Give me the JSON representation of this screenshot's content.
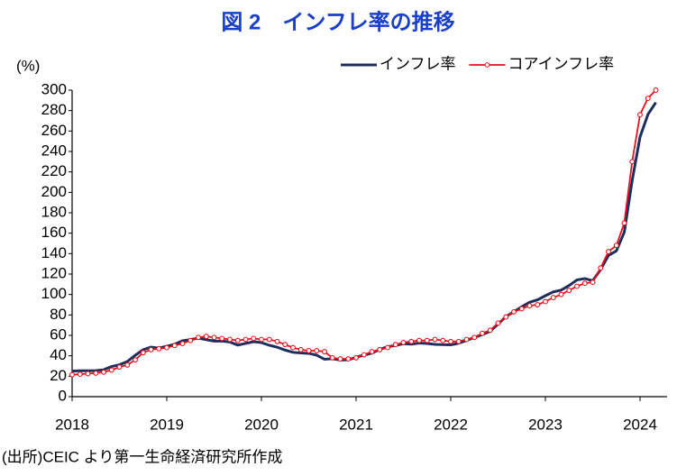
{
  "chart_data": {
    "type": "line",
    "title": "図 2　インフレ率の推移",
    "y_label": "(%)",
    "source": "(出所)CEIC より第一生命経済研究所作成",
    "categories": [
      "2018",
      null,
      null,
      null,
      null,
      null,
      null,
      null,
      null,
      null,
      null,
      null,
      "2019",
      null,
      null,
      null,
      null,
      null,
      null,
      null,
      null,
      null,
      null,
      null,
      "2020",
      null,
      null,
      null,
      null,
      null,
      null,
      null,
      null,
      null,
      null,
      null,
      "2021",
      null,
      null,
      null,
      null,
      null,
      null,
      null,
      null,
      null,
      null,
      null,
      "2022",
      null,
      null,
      null,
      null,
      null,
      null,
      null,
      null,
      null,
      null,
      null,
      "2023",
      null,
      null,
      null,
      null,
      null,
      null,
      null,
      null,
      null,
      null,
      null,
      "2024",
      null,
      null
    ],
    "series": [
      {
        "name": "インフレ率",
        "color": "#1f2d5c",
        "markers": false,
        "values": [
          25,
          25.4,
          25.4,
          25.5,
          26.3,
          29.5,
          31.2,
          34.4,
          40.5,
          45.9,
          48.5,
          47.6,
          49.3,
          51.3,
          54.7,
          55.8,
          57.3,
          55.8,
          54.4,
          54.5,
          53.5,
          50.5,
          52.1,
          53.8,
          52.9,
          50.3,
          48.4,
          45.6,
          43.4,
          42.8,
          42.4,
          40.7,
          36.6,
          37.2,
          35.8,
          36.1,
          38.5,
          40.7,
          42.6,
          46.3,
          48.8,
          50.2,
          51.8,
          51.4,
          52.5,
          52.1,
          51.2,
          50.9,
          50.7,
          52.3,
          55.1,
          58,
          60.7,
          64,
          71,
          78.5,
          83,
          88,
          92.4,
          94.8,
          98.8,
          102.5,
          104.3,
          108.8,
          114.2,
          115.6,
          113.4,
          124.4,
          138.3,
          142.7,
          160.9,
          211.4,
          254.2,
          276.2,
          287.9
        ]
      },
      {
        "name": "コアインフレ率",
        "color": "#e8101a",
        "markers": true,
        "values": [
          21.5,
          22,
          22.5,
          23,
          24,
          26,
          29,
          31,
          36,
          43,
          46,
          47,
          48,
          50,
          52,
          55,
          58,
          59,
          58,
          57,
          56,
          55,
          56,
          57,
          56,
          56,
          54,
          51,
          48,
          46,
          45,
          45,
          44,
          38,
          37,
          37,
          38,
          41,
          44,
          46,
          48,
          51,
          53,
          54,
          55,
          55,
          56,
          55,
          54,
          54,
          56,
          58,
          62,
          65,
          72,
          78,
          83,
          86,
          89,
          90,
          93,
          97,
          100,
          104,
          108,
          111,
          112,
          126,
          142,
          148,
          170,
          230,
          276,
          292,
          300
        ]
      }
    ],
    "ylim": [
      0,
      300
    ],
    "yticks": [
      0,
      20,
      40,
      60,
      80,
      100,
      120,
      140,
      160,
      180,
      200,
      220,
      240,
      260,
      280,
      300
    ],
    "grid": false,
    "legend": "top-right"
  }
}
